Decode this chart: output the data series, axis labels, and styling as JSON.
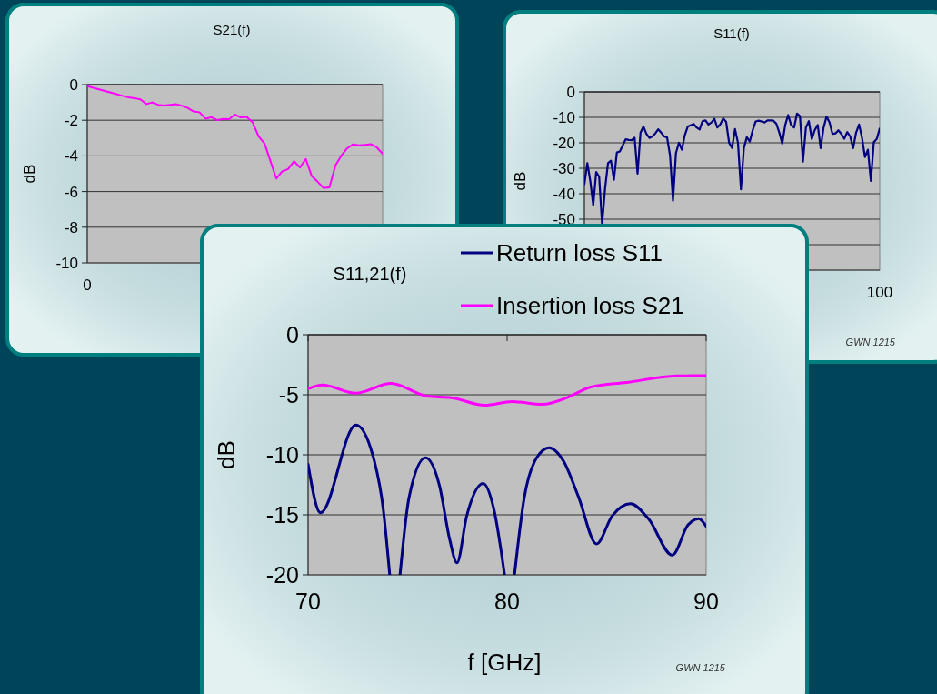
{
  "chart_data": [
    {
      "type": "line",
      "title": "S21(f)",
      "ylabel": "dB",
      "categories": [
        "0",
        null,
        null,
        null,
        null,
        null,
        null,
        null,
        null,
        null,
        null,
        null,
        null,
        null,
        null,
        null,
        null,
        null,
        null,
        null,
        null,
        null,
        null,
        null,
        null,
        null,
        null,
        null,
        null,
        null,
        null,
        null,
        null,
        null,
        null,
        null,
        null,
        null,
        null,
        null,
        null,
        null,
        null,
        null,
        null,
        null,
        null,
        null,
        null,
        null,
        null
      ],
      "ylim": [
        -10,
        0
      ],
      "yticks": [
        0,
        -2,
        -4,
        -6,
        -8,
        -10
      ],
      "grid": "y",
      "series": [
        {
          "color": "#ff00ff",
          "values": [
            -0.09,
            -0.18,
            -0.27,
            -0.36,
            -0.45,
            -0.54,
            -0.63,
            -0.72,
            -0.77,
            -0.83,
            -1.09,
            -1.0,
            -1.13,
            -1.17,
            -1.13,
            -1.1,
            -1.18,
            -1.31,
            -1.51,
            -1.55,
            -1.91,
            -1.83,
            -1.99,
            -1.93,
            -1.94,
            -1.68,
            -1.84,
            -1.81,
            -2.12,
            -2.9,
            -3.3,
            -4.28,
            -5.27,
            -4.87,
            -4.74,
            -4.3,
            -4.65,
            -4.18,
            -5.13,
            -5.45,
            -5.8,
            -5.77,
            -4.54,
            -3.99,
            -3.57,
            -3.35,
            -3.4,
            -3.38,
            -3.34,
            -3.52,
            -3.88
          ]
        }
      ]
    },
    {
      "type": "line",
      "title": "S11(f)",
      "ylabel": "dB",
      "categories": [
        null,
        null,
        null,
        null,
        null,
        null,
        null,
        null,
        null,
        null,
        null,
        null,
        null,
        null,
        null,
        null,
        null,
        null,
        null,
        null,
        null,
        null,
        null,
        null,
        null,
        null,
        null,
        null,
        null,
        null,
        null,
        null,
        null,
        null,
        null,
        null,
        null,
        null,
        null,
        null,
        null,
        null,
        null,
        null,
        null,
        null,
        null,
        null,
        null,
        null,
        null,
        null,
        null,
        null,
        null,
        null,
        null,
        null,
        null,
        null,
        null,
        null,
        null,
        null,
        null,
        null,
        null,
        null,
        null,
        null,
        null,
        null,
        null,
        null,
        null,
        null,
        null,
        null,
        null,
        null,
        null,
        null,
        null,
        null,
        null,
        null,
        null,
        null,
        null,
        null,
        null,
        null,
        null,
        null,
        null,
        null,
        null,
        null,
        null,
        null,
        "100"
      ],
      "ylim": [
        -70,
        0
      ],
      "yticks": [
        0,
        -10,
        -20,
        -30,
        -40,
        -50,
        {
          "value": -60,
          "label": null
        },
        {
          "value": -70,
          "label": null
        }
      ],
      "grid": "y",
      "annotations": [
        "GWN 1215"
      ],
      "series": [
        {
          "color": "#000080",
          "values": [
            -36.2,
            -28,
            -35,
            -44.5,
            -31.5,
            -33.3,
            -52,
            -38,
            -28,
            -27,
            -34.5,
            -23.8,
            -23.4,
            -21,
            -18.6,
            -18.9,
            -19,
            -18,
            -32.1,
            -16,
            -13.6,
            -16.5,
            -18.1,
            -17.5,
            -16.3,
            -14.7,
            -16,
            -17.5,
            -17.9,
            -25,
            -42.7,
            -24,
            -20,
            -22.7,
            -17,
            -13.6,
            -13.1,
            -12.6,
            -14,
            -14.8,
            -11.5,
            -11.2,
            -12.8,
            -12,
            -10.6,
            -14,
            -12.8,
            -10.4,
            -11.8,
            -20,
            -22,
            -14.6,
            -20,
            -38.3,
            -22,
            -17.8,
            -19.5,
            -15,
            -11.6,
            -11.3,
            -11.6,
            -12,
            -11.2,
            -11.2,
            -11.3,
            -12.5,
            -16,
            -20.3,
            -13,
            -9.1,
            -13,
            -14,
            -8.5,
            -9.5,
            -27.4,
            -14,
            -11.5,
            -18.5,
            -15,
            -13,
            -22.1,
            -14,
            -9.7,
            -12,
            -16.5,
            -16.3,
            -15.1,
            -16.5,
            -18.4,
            -15.8,
            -17.5,
            -22.1,
            -16,
            -12.8,
            -18,
            -25.6,
            -22.7,
            -35,
            -19.7,
            -18.5,
            -14.4
          ]
        }
      ]
    },
    {
      "type": "line",
      "title": "S11,21(f)",
      "xlabel": "f [GHz]",
      "ylabel": "dB",
      "xlim": [
        70,
        90
      ],
      "xticks": [
        70,
        80,
        90
      ],
      "ylim": [
        -20,
        0
      ],
      "yticks": [
        0,
        -5,
        -10,
        -15,
        -20
      ],
      "grid": "y",
      "legend": "top right",
      "annotations": [
        "GWN 1215"
      ],
      "series": [
        {
          "name": "Return loss S11",
          "color": "#000080",
          "x": [
            70,
            70.62,
            72.4,
            73.25,
            73.78,
            74.1,
            74.3,
            74.62,
            75.07,
            75.9,
            76.6,
            77.12,
            77.48,
            77.97,
            78.8,
            79.34,
            79.87,
            80.1,
            80.37,
            80.86,
            81.47,
            82.11,
            82.84,
            83.6,
            84.49,
            85.28,
            86.2,
            87.1,
            88.3,
            89.09,
            89.62,
            90
          ],
          "values": [
            -10.8,
            -14.83,
            -7.52,
            -10.04,
            -14.58,
            -20,
            null,
            -20,
            -13.57,
            -10.24,
            -12.56,
            -17.1,
            -19,
            -15.08,
            -12.38,
            -14.58,
            -20,
            null,
            -20,
            -13.57,
            -10.29,
            -9.41,
            -10.54,
            -13.57,
            -17.43,
            -15.08,
            -14.07,
            -15.33,
            -18.36,
            -15.84,
            -15.33,
            -15.96
          ]
        },
        {
          "name": "Insertion loss S21",
          "color": "#ff00ff",
          "x": [
            70,
            70.73,
            72.4,
            74.16,
            75.98,
            77.2,
            78.88,
            80.25,
            81.77,
            82.99,
            84.2,
            86,
            88.5,
            90
          ],
          "values": [
            -4.49,
            -4.19,
            -4.87,
            -4.06,
            -5.12,
            -5.25,
            -5.88,
            -5.57,
            -5.8,
            -5.25,
            -4.36,
            -3.98,
            -3.43,
            -3.4
          ]
        }
      ]
    }
  ]
}
